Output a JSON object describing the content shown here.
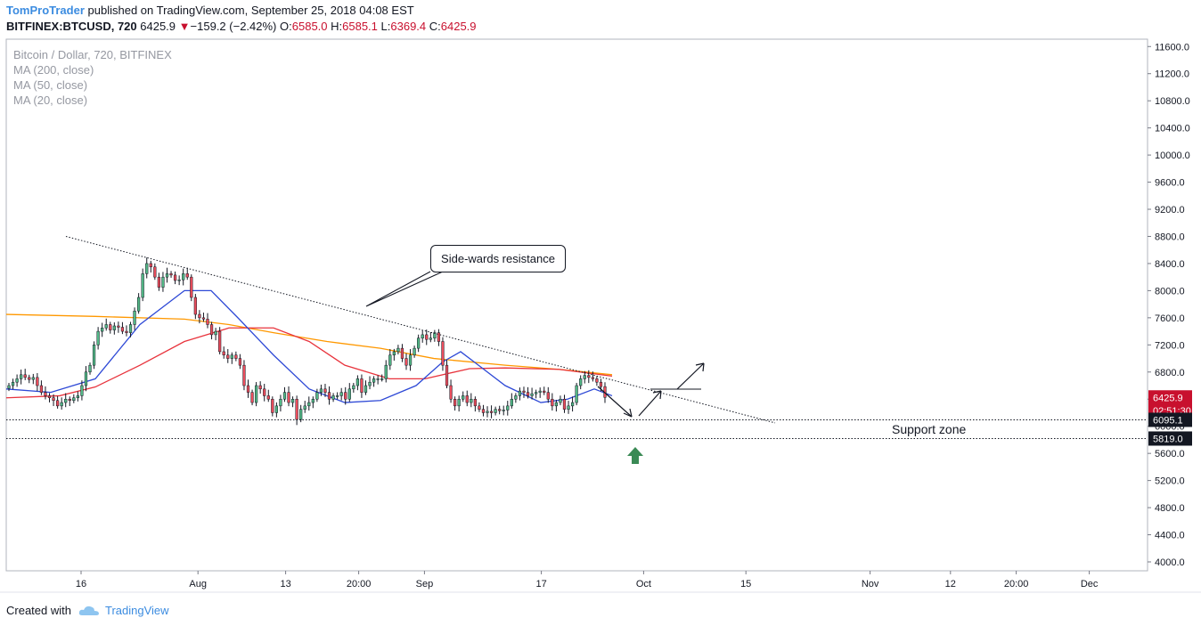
{
  "header": {
    "author": "TomProTrader",
    "published_text": "published on TradingView.com, September 25, 2018 04:08 EST",
    "symbol": "BITFINEX:BTCUSD, 720",
    "last": "6425.9",
    "change": "−159.2 (−2.42%)",
    "open_label": "O:",
    "open": "6585.0",
    "high_label": "H:",
    "high": "6585.1",
    "low_label": "L:",
    "low": "6369.4",
    "close_label": "C:",
    "close": "6425.9",
    "down_arrow_icon": "triangle-down-icon"
  },
  "legend": {
    "title": "Bitcoin / Dollar, 720, BITFINEX",
    "ma200": "MA (200, close)",
    "ma50": "MA (50, close)",
    "ma20": "MA (20, close)"
  },
  "annotations": {
    "resistance_label": "Side-wards resistance",
    "support_label": "Support zone"
  },
  "price_tags": {
    "last_price": "6425.9",
    "countdown": "02:51:30",
    "support_upper": "6095.1",
    "support_lower": "5819.0"
  },
  "footer": {
    "created_with": "Created with",
    "brand": "TradingView",
    "logo_icon": "cloud-icon"
  },
  "colors": {
    "up": "#53b987",
    "down": "#eb4d5c",
    "ma200": "#ff9800",
    "ma50": "#e8333c",
    "ma20": "#2e49d6",
    "arrow_up_marker": "#3a8a55",
    "last_tag": "#c8102e"
  },
  "chart_data": {
    "type": "candlestick",
    "y_axis": {
      "ticks": [
        "11600.0",
        "11200.0",
        "10800.0",
        "10400.0",
        "10000.0",
        "9600.0",
        "9200.0",
        "8800.0",
        "8400.0",
        "8000.0",
        "7600.0",
        "7200.0",
        "6800.0",
        "6400.0",
        "6000.0",
        "5600.0",
        "5200.0",
        "4800.0",
        "4400.0",
        "4000.0"
      ],
      "range": [
        3900,
        11750
      ]
    },
    "x_axis": {
      "ticks": [
        {
          "label": "16",
          "date": "2018-07-16"
        },
        {
          "label": "Aug",
          "date": "2018-08-01"
        },
        {
          "label": "13",
          "date": "2018-08-13"
        },
        {
          "label": "20:00",
          "date": "2018-08-23"
        },
        {
          "label": "Sep",
          "date": "2018-09-01"
        },
        {
          "label": "17",
          "date": "2018-09-17"
        },
        {
          "label": "Oct",
          "date": "2018-10-01"
        },
        {
          "label": "15",
          "date": "2018-10-15"
        },
        {
          "label": "Nov",
          "date": "2018-11-01"
        },
        {
          "label": "12",
          "date": "2018-11-12"
        },
        {
          "label": "20:00",
          "date": "2018-11-21"
        },
        {
          "label": "Dec",
          "date": "2018-12-01"
        }
      ]
    },
    "closes": [
      6600,
      6650,
      6700,
      6760,
      6720,
      6690,
      6720,
      6600,
      6500,
      6450,
      6420,
      6380,
      6300,
      6350,
      6400,
      6380,
      6420,
      6450,
      6600,
      6800,
      6900,
      7200,
      7400,
      7450,
      7500,
      7420,
      7480,
      7460,
      7400,
      7380,
      7500,
      7700,
      7900,
      8250,
      8400,
      8350,
      8200,
      8050,
      8200,
      8250,
      8230,
      8150,
      8160,
      8250,
      8200,
      7900,
      7650,
      7600,
      7580,
      7500,
      7350,
      7400,
      7100,
      7050,
      7000,
      7050,
      7000,
      6900,
      6600,
      6500,
      6350,
      6600,
      6550,
      6450,
      6400,
      6200,
      6300,
      6400,
      6500,
      6350,
      6400,
      6100,
      6250,
      6300,
      6350,
      6400,
      6500,
      6550,
      6500,
      6400,
      6450,
      6450,
      6500,
      6400,
      6550,
      6600,
      6700,
      6500,
      6600,
      6650,
      6700,
      6700,
      6700,
      6900,
      7050,
      7100,
      7150,
      7000,
      6900,
      7050,
      7150,
      7300,
      7350,
      7280,
      7300,
      7380,
      7250,
      6900,
      6600,
      6400,
      6300,
      6400,
      6450,
      6350,
      6400,
      6300,
      6250,
      6200,
      6220,
      6200,
      6250,
      6230,
      6240,
      6300,
      6400,
      6450,
      6520,
      6500,
      6450,
      6480,
      6500,
      6520,
      6500,
      6400,
      6300,
      6350,
      6400,
      6250,
      6300,
      6350,
      6600,
      6700,
      6750,
      6720,
      6700,
      6650,
      6585,
      6425.9
    ],
    "series": [
      {
        "name": "MA (200, close)",
        "points": [
          [
            0,
            7650
          ],
          [
            100,
            7620
          ],
          [
            200,
            7580
          ],
          [
            250,
            7500
          ],
          [
            300,
            7380
          ],
          [
            360,
            7250
          ],
          [
            420,
            7150
          ],
          [
            480,
            7000
          ],
          [
            560,
            6900
          ],
          [
            620,
            6840
          ],
          [
            680,
            6760
          ]
        ]
      },
      {
        "name": "MA (50, close)",
        "points": [
          [
            0,
            6420
          ],
          [
            60,
            6450
          ],
          [
            100,
            6580
          ],
          [
            150,
            6900
          ],
          [
            200,
            7250
          ],
          [
            250,
            7450
          ],
          [
            300,
            7450
          ],
          [
            340,
            7250
          ],
          [
            380,
            6900
          ],
          [
            430,
            6700
          ],
          [
            470,
            6700
          ],
          [
            520,
            6850
          ],
          [
            560,
            6860
          ],
          [
            620,
            6840
          ],
          [
            680,
            6740
          ]
        ]
      },
      {
        "name": "MA (20, close)",
        "points": [
          [
            0,
            6550
          ],
          [
            50,
            6500
          ],
          [
            100,
            6700
          ],
          [
            150,
            7500
          ],
          [
            200,
            8000
          ],
          [
            230,
            8000
          ],
          [
            260,
            7600
          ],
          [
            300,
            7050
          ],
          [
            340,
            6550
          ],
          [
            380,
            6350
          ],
          [
            420,
            6380
          ],
          [
            460,
            6600
          ],
          [
            490,
            6950
          ],
          [
            510,
            7100
          ],
          [
            530,
            6900
          ],
          [
            560,
            6600
          ],
          [
            600,
            6350
          ],
          [
            630,
            6400
          ],
          [
            660,
            6550
          ],
          [
            680,
            6450
          ]
        ]
      }
    ],
    "resistance_line": [
      [
        74,
        8800
      ],
      [
        870,
        6050
      ]
    ],
    "support_zone": [
      6095.1,
      5819.0
    ],
    "grid": false,
    "legend_placement": "top-left"
  }
}
